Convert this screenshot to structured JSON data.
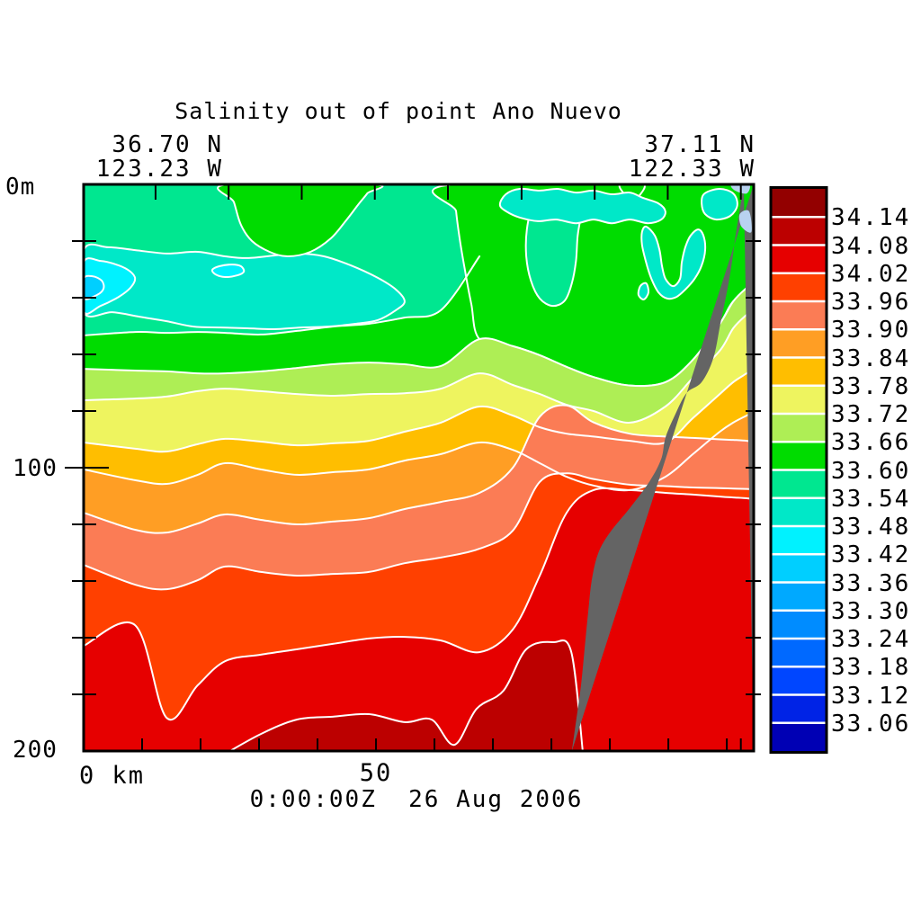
{
  "header": {
    "title": "Salinity out of point Ano Nuevo",
    "left_lat": "36.70 N",
    "left_lon": "123.23 W",
    "right_lat": "37.11 N",
    "right_lon": "122.33 W"
  },
  "axes": {
    "y_top_label": "0m",
    "y_mid_label": "100",
    "y_bottom_label": "200",
    "x_origin_label": "0 km",
    "x_mid_label": "50"
  },
  "footer": {
    "datetime": "0:00:00Z  26 Aug 2006"
  },
  "colorbar": {
    "labels": [
      "34.14",
      "34.08",
      "34.02",
      "33.96",
      "33.90",
      "33.84",
      "33.78",
      "33.72",
      "33.66",
      "33.60",
      "33.54",
      "33.48",
      "33.42",
      "33.36",
      "33.30",
      "33.24",
      "33.18",
      "33.12",
      "33.06"
    ]
  },
  "chart_data": {
    "type": "heatmap",
    "subtype": "filled-contour-vertical-section",
    "title": "Salinity out of point Ano Nuevo",
    "datetime": "0:00:00Z  26 Aug 2006",
    "section_endpoints": {
      "left": {
        "lat": "36.70 N",
        "lon": "123.23 W"
      },
      "right": {
        "lat": "37.11 N",
        "lon": "122.33 W"
      }
    },
    "xlabel": "km",
    "ylabel": "m",
    "x_range_km": [
      0,
      114.6
    ],
    "depth_range_m": [
      0,
      200
    ],
    "x_tick_labels": [
      {
        "km": 0,
        "text": "0 km"
      },
      {
        "km": 50,
        "text": "50"
      }
    ],
    "y_tick_labels": [
      {
        "m": 0,
        "text": "0m"
      },
      {
        "m": 100,
        "text": "100"
      },
      {
        "m": 200,
        "text": "200"
      }
    ],
    "bottom_ticks_km": [
      10,
      20,
      30,
      40,
      50,
      60,
      70,
      80,
      90,
      100,
      110,
      112.4
    ],
    "top_ticks_km": [
      12.3,
      24.8,
      37.3,
      49.8,
      62.3,
      74.9,
      87.4,
      99.9,
      112.4
    ],
    "side_ticks_m": [
      20,
      40,
      60,
      80,
      100,
      120,
      140,
      160,
      180
    ],
    "major_side_ticks_m": [
      100
    ],
    "levels": [
      33.06,
      33.12,
      33.18,
      33.24,
      33.3,
      33.36,
      33.42,
      33.48,
      33.54,
      33.6,
      33.66,
      33.72,
      33.78,
      33.84,
      33.9,
      33.96,
      34.02,
      34.08,
      34.14
    ],
    "palette": [
      "#0000b4",
      "#0023e6",
      "#0046ff",
      "#0069ff",
      "#008cff",
      "#00a9ff",
      "#00cfff",
      "#00f2ff",
      "#00e8c8",
      "#00e790",
      "#00dc00",
      "#aeee55",
      "#eef45f",
      "#ffbe00",
      "#ff9e24",
      "#fb7c55",
      "#ff4000",
      "#e60000",
      "#bc0000",
      "#930000"
    ],
    "contour_line_color": "#ffffff",
    "land_color": "#646464",
    "sliver_color": "#b8d2f0",
    "base_palette_index": 9,
    "x_km": [
      0,
      8.8,
      14.2,
      19.5,
      24.2,
      30.3,
      36.5,
      42.6,
      48.8,
      54.9,
      61.1,
      67.7,
      73.4,
      78,
      82.6,
      87.2,
      93.4,
      99.5,
      104.2,
      108.8,
      111.1,
      113.4,
      114.6
    ],
    "boundaries": [
      {
        "level": 33.6,
        "outline_stations": 12,
        "depths_m": [
          53.3,
          52.1,
          52.4,
          52.1,
          52.4,
          53,
          51.7,
          50.2,
          49.2,
          47,
          44.4,
          25.4,
          21.3,
          19,
          18.1,
          18.7,
          20,
          22.2,
          23.8,
          17.5,
          11.1,
          6.3,
          3.2
        ]
      },
      {
        "level": 33.66,
        "outline_stations": null,
        "depths_m": [
          65.1,
          65.7,
          66,
          66.7,
          66.7,
          66,
          64.8,
          63.5,
          62.9,
          63.5,
          64.1,
          54.6,
          57.1,
          60.3,
          64.4,
          68,
          71,
          69.8,
          61.9,
          49.2,
          41.3,
          36.5,
          34.9
        ]
      },
      {
        "level": 33.72,
        "outline_stations": null,
        "depths_m": [
          76.2,
          75.6,
          74.9,
          73,
          72.1,
          73,
          74,
          74.6,
          74,
          73.7,
          72.1,
          66.7,
          70.8,
          74,
          77.8,
          80,
          84.1,
          78.4,
          68.3,
          58.7,
          50.8,
          46,
          44.4
        ]
      },
      {
        "level": 33.78,
        "outline_stations": null,
        "depths_m": [
          91.1,
          93.3,
          94.3,
          91.7,
          89.8,
          90.8,
          92.1,
          91.4,
          90.5,
          87.3,
          84.1,
          78.4,
          81.6,
          85.7,
          88,
          89,
          90.5,
          91.1,
          82.5,
          74,
          69.8,
          66.7,
          65.1
        ]
      },
      {
        "level": 33.84,
        "outline_stations": null,
        "depths_m": [
          100.6,
          104.4,
          105.7,
          102.5,
          98.4,
          100.6,
          102.5,
          101.6,
          100.6,
          97.5,
          95.2,
          91.1,
          93.7,
          98.4,
          103.2,
          106.3,
          107.9,
          103.2,
          95.2,
          87.3,
          84.1,
          81.6,
          80.3
        ]
      },
      {
        "level": 33.9,
        "outline_stations": null,
        "depths_m": [
          115.9,
          121.9,
          122.9,
          119.7,
          116.5,
          118.4,
          120,
          119,
          117.8,
          114.6,
          112.1,
          108.9,
          100,
          82,
          78,
          84,
          88,
          89,
          89.5,
          90,
          90.2,
          90.5,
          91
        ]
      },
      {
        "level": 33.96,
        "outline_stations": null,
        "depths_m": [
          134.3,
          141.3,
          142.9,
          139.7,
          134.9,
          136.8,
          138.1,
          137.5,
          136.8,
          133.7,
          131.7,
          128.6,
          122.2,
          105,
          102,
          104,
          106,
          106.5,
          107,
          107.2,
          107.4,
          107.5,
          107.6
        ]
      },
      {
        "level": 34.02,
        "outline_stations": null,
        "depths_m": [
          162.9,
          155.6,
          188.3,
          176.8,
          168.3,
          166,
          164.1,
          162.2,
          160.3,
          159.7,
          161,
          165.1,
          157.1,
          138.1,
          115.9,
          107.9,
          107.9,
          108.9,
          109.5,
          110.2,
          110.5,
          110.8,
          111.1
        ]
      }
    ],
    "lens_34_08": {
      "level_range": "34.08-34.14",
      "palette_index": 18,
      "x_km": [
        24.2,
        30.3,
        36.5,
        42.6,
        48.8,
        54.9,
        59.5,
        63.4,
        67.2,
        71.8,
        75.7,
        80.3,
        83.4,
        85.4
      ],
      "depths_m": [
        201,
        194,
        188.9,
        187.9,
        187,
        189.8,
        188.9,
        197.8,
        185.1,
        178.7,
        164.1,
        161.6,
        165.1,
        201
      ]
    },
    "upper_patches": [
      {
        "name": "turquoise-band-upper-left",
        "palette_index": 8,
        "points": [
          [
            0,
            23.2
          ],
          [
            4.2,
            22.2
          ],
          [
            8.8,
            23.2
          ],
          [
            14.2,
            24.4
          ],
          [
            19.5,
            23.8
          ],
          [
            24.2,
            25.4
          ],
          [
            28,
            26
          ],
          [
            32.6,
            25.1
          ],
          [
            36.5,
            24.4
          ],
          [
            41.1,
            25.4
          ],
          [
            45.7,
            28.6
          ],
          [
            50.3,
            33
          ],
          [
            53.4,
            37.1
          ],
          [
            54.9,
            41.3
          ],
          [
            53.4,
            44.4
          ],
          [
            50.3,
            47.9
          ],
          [
            46.5,
            49.2
          ],
          [
            41.8,
            50.2
          ],
          [
            37.2,
            50.5
          ],
          [
            32.6,
            51.1
          ],
          [
            28,
            50.8
          ],
          [
            23.4,
            50.5
          ],
          [
            18.8,
            50.2
          ],
          [
            14.2,
            48.3
          ],
          [
            9.5,
            46.7
          ],
          [
            4.9,
            45.1
          ],
          [
            0,
            45.1
          ]
        ]
      },
      {
        "name": "cyan-lens-left",
        "palette_index": 7,
        "points": [
          [
            0,
            27.6
          ],
          [
            2.9,
            27
          ],
          [
            6,
            28.6
          ],
          [
            8,
            30.8
          ],
          [
            8.8,
            33.3
          ],
          [
            8,
            36.5
          ],
          [
            6,
            39.7
          ],
          [
            2.9,
            42.9
          ],
          [
            0,
            44.8
          ]
        ]
      },
      {
        "name": "cyan-lens-small",
        "palette_index": 7,
        "points": [
          [
            22,
            30.2
          ],
          [
            23.2,
            28.9
          ],
          [
            25.4,
            28.3
          ],
          [
            26.9,
            28.9
          ],
          [
            27.4,
            30.8
          ],
          [
            26.3,
            32.1
          ],
          [
            24.2,
            32.7
          ],
          [
            22.6,
            31.8
          ]
        ]
      },
      {
        "name": "fresh-core-spot",
        "palette_index": 6,
        "points": [
          [
            0,
            33.3
          ],
          [
            1.5,
            32.4
          ],
          [
            3.1,
            34
          ],
          [
            3.4,
            36.8
          ],
          [
            2.3,
            39
          ],
          [
            0,
            40.3
          ]
        ]
      }
    ],
    "mid_patches": [
      {
        "name": "green-mass-right",
        "palette_index": 10,
        "points": [
          [
            63.4,
            0
          ],
          [
            63.7,
            9.5
          ],
          [
            64.3,
            19
          ],
          [
            65.2,
            30.2
          ],
          [
            66.3,
            42.2
          ],
          [
            67.7,
            54.6
          ],
          [
            73.4,
            57.1
          ],
          [
            78,
            60.3
          ],
          [
            82.6,
            64.4
          ],
          [
            87.2,
            68
          ],
          [
            93.4,
            71
          ],
          [
            99.5,
            69.8
          ],
          [
            104.2,
            61.9
          ],
          [
            108.8,
            49.2
          ],
          [
            111.1,
            41.3
          ],
          [
            114.6,
            35.9
          ],
          [
            114.6,
            0
          ]
        ]
      },
      {
        "name": "green-surface-patch-center",
        "palette_index": 10,
        "points": [
          [
            24.5,
            0
          ],
          [
            25.7,
            6.3
          ],
          [
            26.9,
            14.3
          ],
          [
            28.8,
            20
          ],
          [
            31.8,
            23.8
          ],
          [
            34.9,
            25.4
          ],
          [
            38.8,
            23.8
          ],
          [
            42.3,
            19
          ],
          [
            44.9,
            12.7
          ],
          [
            46.9,
            7.3
          ],
          [
            48.5,
            3.2
          ],
          [
            49.5,
            0
          ]
        ]
      },
      {
        "name": "green-surface-patch-small",
        "palette_index": 10,
        "points": [
          [
            91.8,
            0
          ],
          [
            92.5,
            3.5
          ],
          [
            93.7,
            5.4
          ],
          [
            95.1,
            3.8
          ],
          [
            95.8,
            0
          ]
        ]
      },
      {
        "name": "springgreen-pocket",
        "palette_index": 9,
        "points": [
          [
            76.8,
            7.9
          ],
          [
            75.8,
            15.9
          ],
          [
            75.7,
            25.4
          ],
          [
            76.5,
            34
          ],
          [
            78,
            40.3
          ],
          [
            80.2,
            42.9
          ],
          [
            82.3,
            41
          ],
          [
            83.5,
            34.9
          ],
          [
            84.2,
            27
          ],
          [
            84.5,
            18.1
          ],
          [
            85.1,
            11.1
          ],
          [
            85.7,
            7.3
          ],
          [
            84.2,
            5.4
          ],
          [
            81.1,
            4.8
          ],
          [
            78.8,
            5.4
          ]
        ]
      },
      {
        "name": "turquoise-patch-top",
        "palette_index": 8,
        "points": [
          [
            71.2,
            7.3
          ],
          [
            72.2,
            3.5
          ],
          [
            74.6,
            1.6
          ],
          [
            78,
            2.2
          ],
          [
            81.1,
            1.6
          ],
          [
            84.2,
            2.9
          ],
          [
            87.2,
            2.2
          ],
          [
            90.3,
            3.5
          ],
          [
            93.4,
            2.9
          ],
          [
            95.7,
            4.8
          ],
          [
            98.3,
            6.7
          ],
          [
            99.5,
            9.5
          ],
          [
            98.8,
            12.4
          ],
          [
            96.5,
            13.7
          ],
          [
            93.4,
            12.4
          ],
          [
            90.3,
            13.7
          ],
          [
            87.2,
            12.4
          ],
          [
            84.2,
            13.7
          ],
          [
            80.8,
            12.4
          ],
          [
            77.7,
            13
          ],
          [
            74.6,
            11.7
          ],
          [
            72.5,
            9.8
          ]
        ]
      },
      {
        "name": "turquoise-patch-v",
        "palette_index": 8,
        "points": [
          [
            96.2,
            14.9
          ],
          [
            97.7,
            18.1
          ],
          [
            98.5,
            23.2
          ],
          [
            98.9,
            28.6
          ],
          [
            99.5,
            33.3
          ],
          [
            100.8,
            35.9
          ],
          [
            102,
            33.3
          ],
          [
            102.3,
            27.6
          ],
          [
            102.9,
            22.2
          ],
          [
            103.8,
            18.1
          ],
          [
            105.1,
            15.9
          ],
          [
            106,
            18.1
          ],
          [
            106.3,
            23.2
          ],
          [
            105.7,
            28.6
          ],
          [
            104.5,
            33.3
          ],
          [
            102.9,
            37.1
          ],
          [
            101.4,
            39.7
          ],
          [
            99.8,
            40.3
          ],
          [
            98.3,
            38.1
          ],
          [
            97.1,
            33.3
          ],
          [
            96.2,
            27.6
          ],
          [
            95.5,
            21.3
          ],
          [
            95.5,
            16.8
          ]
        ]
      },
      {
        "name": "turquoise-patch-corner",
        "palette_index": 8,
        "points": [
          [
            106.2,
            3.2
          ],
          [
            108.8,
            1.6
          ],
          [
            111.1,
            3.2
          ],
          [
            111.8,
            7.3
          ],
          [
            110.6,
            11.1
          ],
          [
            108.2,
            12.4
          ],
          [
            106.3,
            10.5
          ],
          [
            105.7,
            6.7
          ]
        ]
      },
      {
        "name": "turquoise-dot",
        "palette_index": 8,
        "points": [
          [
            95.2,
            35.9
          ],
          [
            96.2,
            34.9
          ],
          [
            96.6,
            38.1
          ],
          [
            95.8,
            40.6
          ],
          [
            94.9,
            39
          ]
        ]
      }
    ],
    "slivers": [
      {
        "name": "pale-sliver-top",
        "points": [
          [
            110.8,
            0
          ],
          [
            113.8,
            0
          ],
          [
            113.4,
            3.2
          ],
          [
            111.4,
            2.2
          ]
        ]
      },
      {
        "name": "pale-sliver-lower",
        "points": [
          [
            112.2,
            10.5
          ],
          [
            113.8,
            9.5
          ],
          [
            114.2,
            16.8
          ],
          [
            112.5,
            14.9
          ]
        ]
      }
    ],
    "land_profile": [
      [
        112.9,
        0
      ],
      [
        112.3,
        7.9
      ],
      [
        111.5,
        18.1
      ],
      [
        110.8,
        28.6
      ],
      [
        110,
        38.1
      ],
      [
        108.9,
        49.2
      ],
      [
        107.7,
        61.3
      ],
      [
        105.7,
        69.8
      ],
      [
        103.1,
        73.7
      ],
      [
        101.1,
        81.6
      ],
      [
        99.5,
        89.5
      ],
      [
        98.8,
        96.8
      ],
      [
        96.8,
        104.8
      ],
      [
        93.4,
        114.3
      ],
      [
        90,
        122.9
      ],
      [
        88,
        130.2
      ],
      [
        86.9,
        139.7
      ],
      [
        86.3,
        150.8
      ],
      [
        85.7,
        163.5
      ],
      [
        85.1,
        176.2
      ],
      [
        84.3,
        188.3
      ],
      [
        83.5,
        200
      ]
    ]
  }
}
